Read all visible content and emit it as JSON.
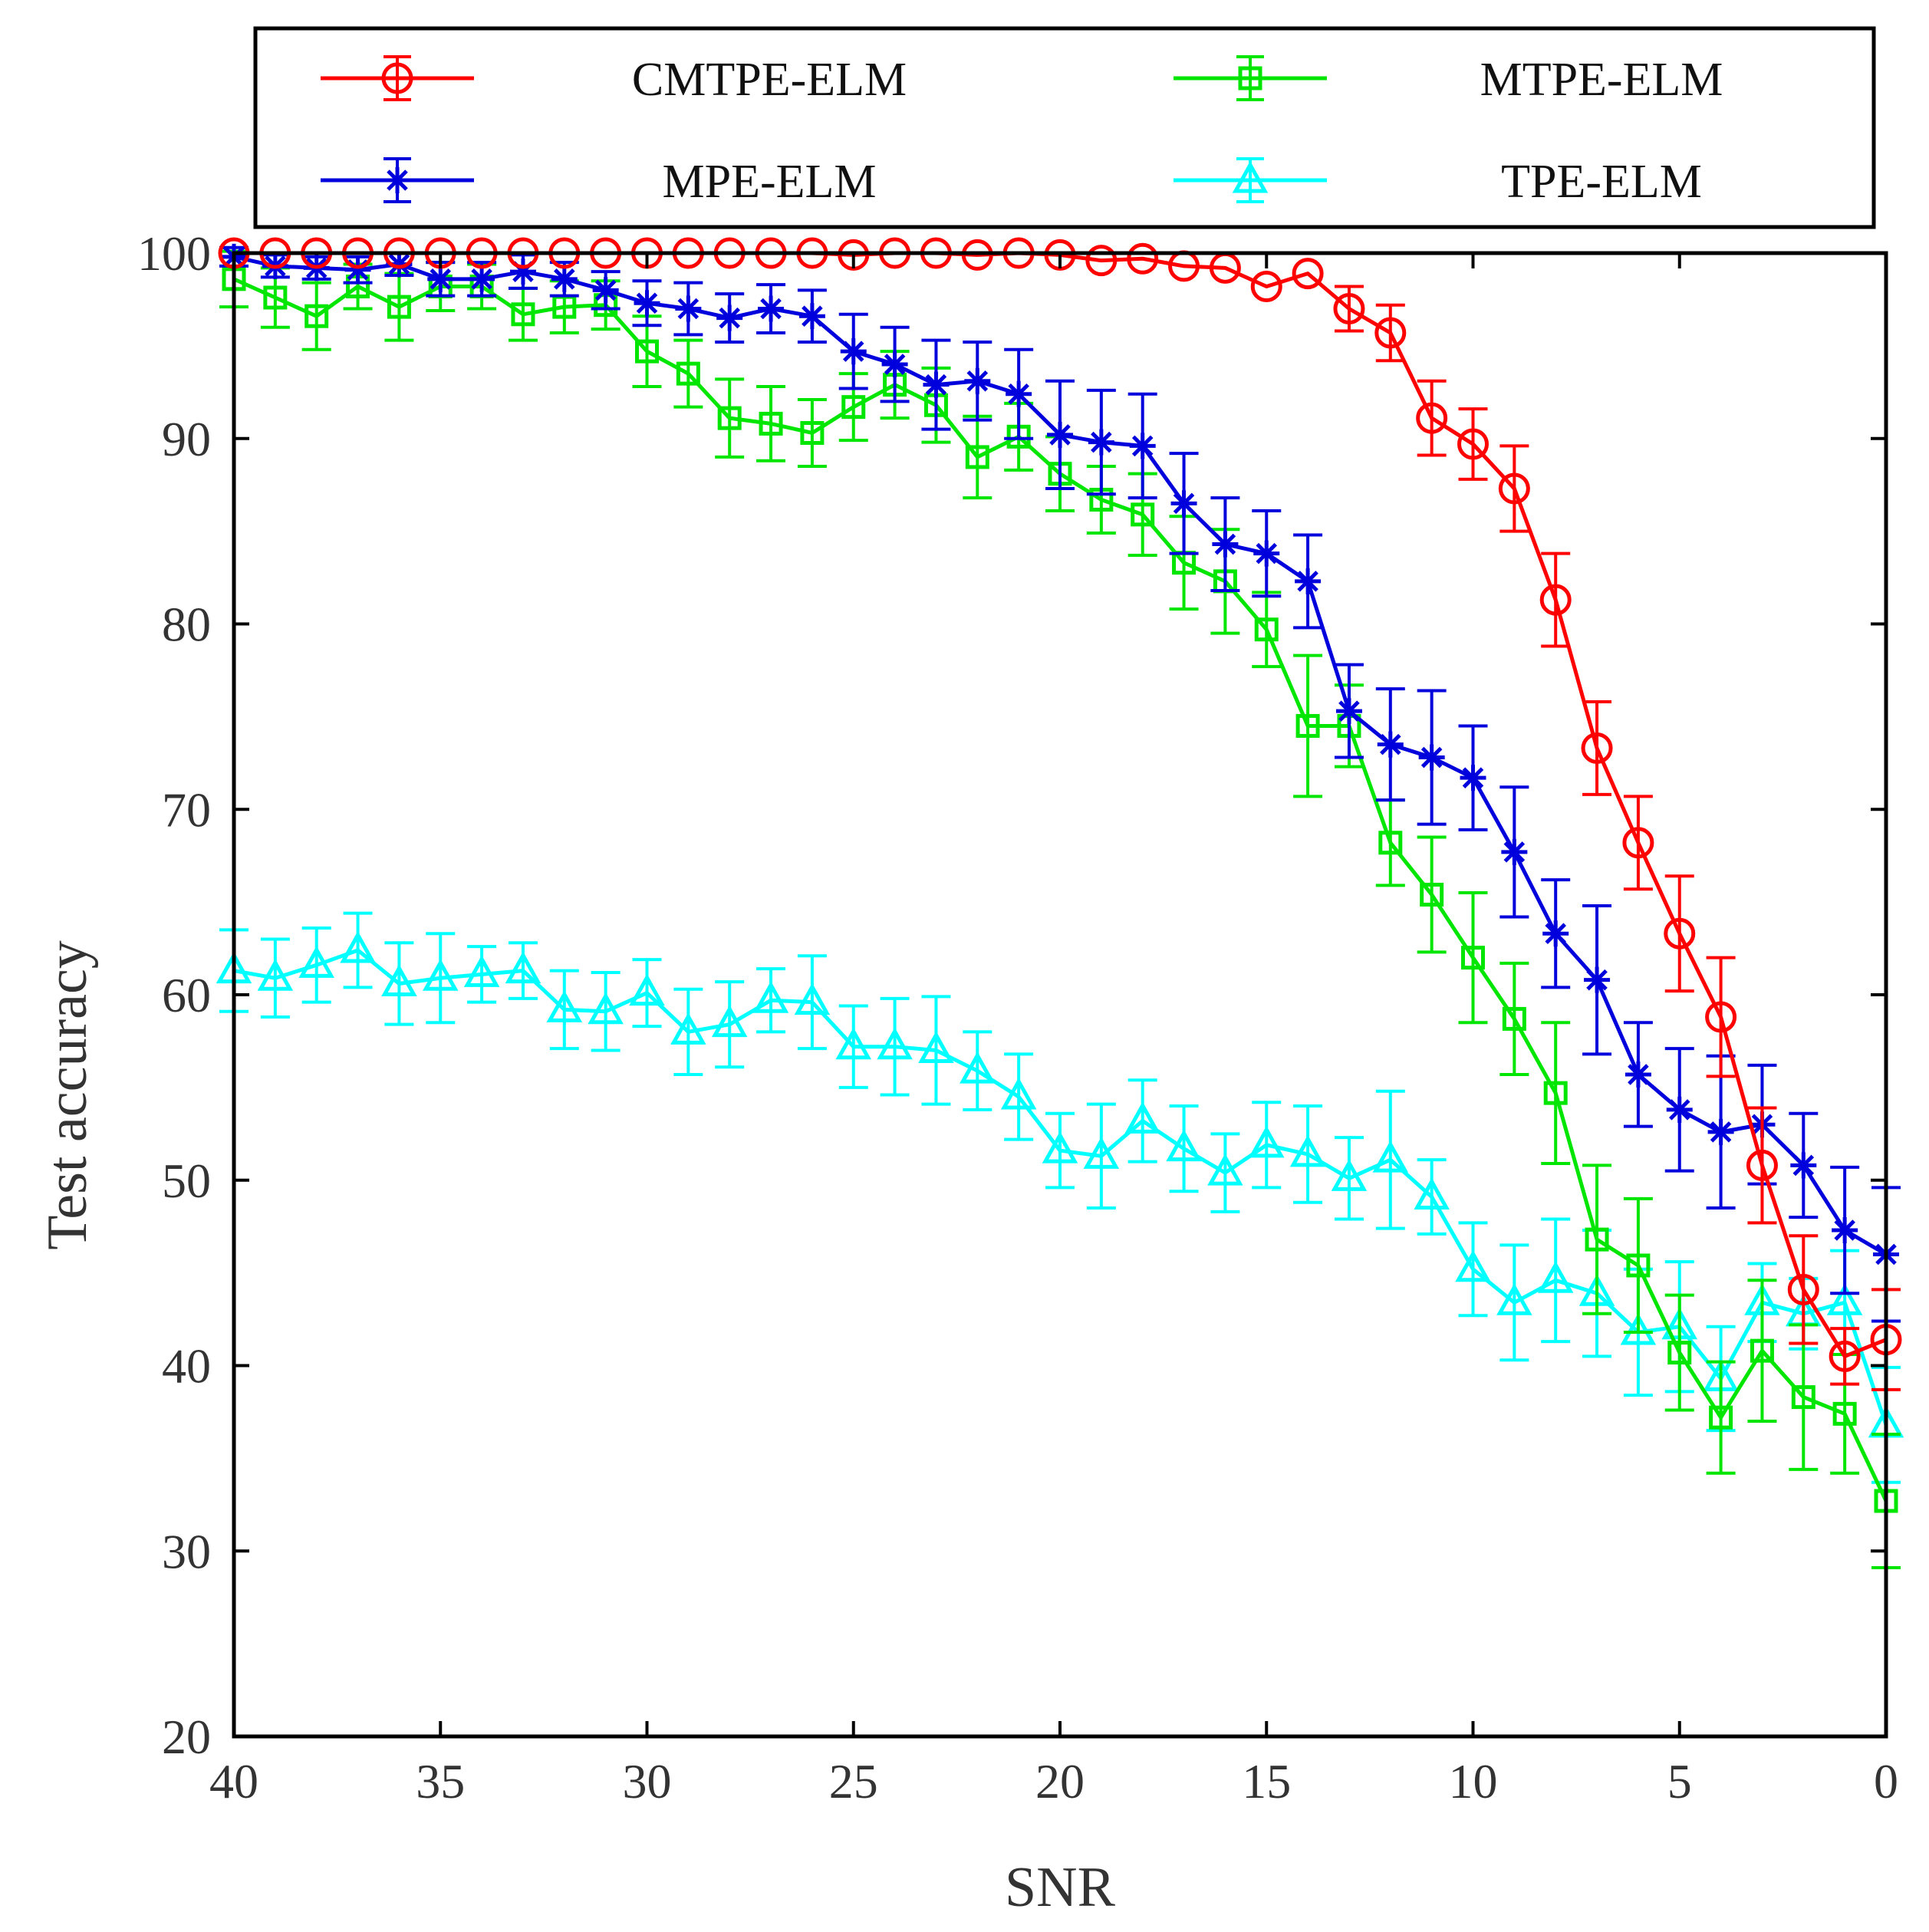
{
  "chart_data": {
    "type": "line",
    "title": "",
    "xlabel": "SNR",
    "ylabel": "Test accuracy",
    "xlim": [
      0,
      40
    ],
    "x_reversed": true,
    "ylim": [
      20,
      100
    ],
    "xticks": [
      40,
      35,
      30,
      25,
      20,
      15,
      10,
      5,
      0
    ],
    "yticks": [
      100,
      90,
      80,
      70,
      60,
      50,
      40,
      30,
      20
    ],
    "grid": false,
    "legend_position": "top",
    "x": [
      40,
      39,
      38,
      37,
      36,
      35,
      34,
      33,
      32,
      31,
      30,
      29,
      28,
      27,
      26,
      25,
      24,
      23,
      22,
      21,
      20,
      19,
      18,
      17,
      16,
      15,
      14,
      13,
      12,
      11,
      10,
      9,
      8,
      7,
      6,
      5,
      4,
      3,
      2,
      1,
      0
    ],
    "series": [
      {
        "name": "CMTPE-ELM",
        "color": "#ff0000",
        "marker": "circle",
        "values": [
          100,
          100,
          100,
          100,
          100,
          100,
          100,
          100,
          100,
          100,
          100,
          100,
          100,
          100,
          100,
          99.9,
          100,
          100,
          99.9,
          100,
          99.9,
          99.6,
          99.7,
          99.3,
          99.2,
          98.2,
          98.9,
          97,
          95.7,
          91.1,
          89.7,
          87.3,
          81.3,
          73.3,
          68.2,
          63.3,
          58.8,
          50.8,
          44.1,
          40.5,
          41.4
        ],
        "errors": [
          0,
          0,
          0,
          0,
          0,
          0,
          0,
          0,
          0,
          0,
          0,
          0,
          0,
          0,
          0,
          0,
          0,
          0,
          0,
          0,
          0,
          0,
          0,
          0,
          0,
          0,
          0,
          1.2,
          1.5,
          2,
          1.9,
          2.3,
          2.5,
          2.5,
          2.5,
          3.1,
          3.2,
          3.1,
          2.9,
          1.5,
          2.7
        ]
      },
      {
        "name": "MTPE-ELM",
        "color": "#00e600",
        "marker": "square",
        "values": [
          98.6,
          97.6,
          96.6,
          98.2,
          97.1,
          98.2,
          98.2,
          96.7,
          97.1,
          97.2,
          94.7,
          93.5,
          91.1,
          90.8,
          90.3,
          91.7,
          92.9,
          91.8,
          89,
          90.1,
          88.1,
          86.7,
          85.9,
          83.3,
          82.3,
          79.7,
          74.5,
          74.5,
          68.2,
          65.4,
          62,
          58.7,
          54.7,
          46.8,
          45.4,
          40.7,
          37.2,
          40.8,
          38.3,
          37.4,
          32.7
        ],
        "errors": [
          1.5,
          1.6,
          1.8,
          1.2,
          1.8,
          1.3,
          1.2,
          1.4,
          1.4,
          1.3,
          1.9,
          1.8,
          2.1,
          2,
          1.8,
          1.8,
          1.8,
          2,
          2.2,
          1.8,
          2,
          1.8,
          2.2,
          2.5,
          2.8,
          2,
          3.8,
          2.2,
          2.3,
          3.1,
          3.5,
          3,
          3.8,
          4,
          3.6,
          3.1,
          3,
          3.8,
          3.9,
          3.2,
          3.6
        ]
      },
      {
        "name": "MPE-ELM",
        "color": "#0000dd",
        "marker": "asterisk",
        "values": [
          99.8,
          99.3,
          99.2,
          99.1,
          99.4,
          98.6,
          98.6,
          99,
          98.6,
          98,
          97.3,
          97,
          96.5,
          97,
          96.6,
          94.7,
          94,
          92.9,
          93.1,
          92.4,
          90.2,
          89.8,
          89.6,
          86.5,
          84.3,
          83.8,
          82.3,
          75.3,
          73.5,
          72.8,
          71.7,
          67.7,
          63.3,
          60.8,
          55.7,
          53.8,
          52.6,
          53,
          50.8,
          47.3,
          46
        ],
        "errors": [
          0.5,
          0.6,
          0.6,
          0.7,
          0.6,
          0.9,
          0.9,
          0.9,
          0.9,
          1,
          1.2,
          1.4,
          1.3,
          1.3,
          1.4,
          2,
          2,
          2.4,
          2.1,
          2.4,
          2.9,
          2.8,
          2.8,
          2.7,
          2.5,
          2.3,
          2.5,
          2.5,
          3,
          3.6,
          2.8,
          3.5,
          2.9,
          4,
          2.8,
          3.3,
          4.1,
          3.2,
          2.8,
          3.4,
          3.6
        ]
      },
      {
        "name": "TPE-ELM",
        "color": "#00ffff",
        "marker": "triangle",
        "values": [
          61.3,
          60.9,
          61.6,
          62.4,
          60.6,
          60.9,
          61.1,
          61.3,
          59.2,
          59.1,
          60.1,
          58,
          58.4,
          59.7,
          59.6,
          57.2,
          57.2,
          57,
          55.9,
          54.5,
          51.6,
          51.3,
          53.2,
          51.7,
          50.4,
          51.9,
          51.4,
          50.1,
          51.1,
          49.1,
          45.2,
          43.4,
          44.6,
          43.9,
          41.8,
          42.1,
          39.3,
          43.4,
          42.8,
          43.4,
          36.8
        ],
        "errors": [
          2.2,
          2.1,
          2,
          2,
          2.2,
          2.4,
          1.5,
          1.5,
          2.1,
          2.1,
          1.8,
          2.3,
          2.3,
          1.7,
          2.5,
          2.2,
          2.6,
          2.9,
          2.1,
          2.3,
          2,
          2.8,
          2.2,
          2.3,
          2.1,
          2.3,
          2.6,
          2.2,
          3.7,
          2,
          2.5,
          3.1,
          3.3,
          3.4,
          3.4,
          3.5,
          2.8,
          2.1,
          1.9,
          2.8,
          3.1
        ]
      }
    ]
  }
}
